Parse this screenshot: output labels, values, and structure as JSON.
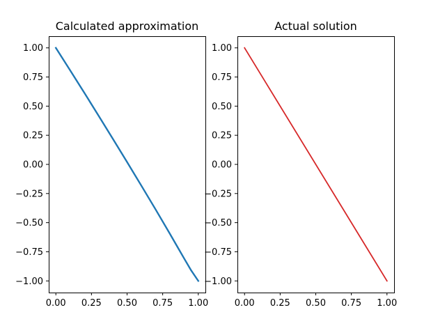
{
  "chart_data": [
    {
      "type": "line",
      "title": "Calculated approximation",
      "xlabel": "",
      "ylabel": "",
      "xlim": [
        -0.05,
        1.05
      ],
      "ylim": [
        -1.1,
        1.1
      ],
      "xticks": [
        0.0,
        0.25,
        0.5,
        0.75,
        1.0
      ],
      "xtick_labels": [
        "0.00",
        "0.25",
        "0.50",
        "0.75",
        "1.00"
      ],
      "yticks": [
        1.0,
        0.75,
        0.5,
        0.25,
        0.0,
        -0.25,
        -0.5,
        -0.75,
        -1.0
      ],
      "ytick_labels": [
        "1.00",
        "0.75",
        "0.50",
        "0.25",
        "0.00",
        "−0.25",
        "−0.50",
        "−0.75",
        "−1.00"
      ],
      "grid": false,
      "series": [
        {
          "color": "#1f77b4",
          "x": [
            0.0,
            0.1,
            0.2,
            0.3,
            0.4,
            0.5,
            0.6,
            0.7,
            0.8,
            0.9,
            0.95,
            1.0
          ],
          "y": [
            1.0,
            0.808,
            0.614,
            0.418,
            0.22,
            0.02,
            -0.182,
            -0.386,
            -0.594,
            -0.806,
            -0.91,
            -1.0
          ]
        }
      ]
    },
    {
      "type": "line",
      "title": "Actual solution",
      "xlabel": "",
      "ylabel": "",
      "xlim": [
        -0.05,
        1.05
      ],
      "ylim": [
        -1.1,
        1.1
      ],
      "xticks": [
        0.0,
        0.25,
        0.5,
        0.75,
        1.0
      ],
      "xtick_labels": [
        "0.00",
        "0.25",
        "0.50",
        "0.75",
        "1.00"
      ],
      "yticks": [
        1.0,
        0.75,
        0.5,
        0.25,
        0.0,
        -0.25,
        -0.5,
        -0.75,
        -1.0
      ],
      "ytick_labels": [
        "1.00",
        "0.75",
        "0.50",
        "0.25",
        "0.00",
        "−0.25",
        "−0.50",
        "−0.75",
        "−1.00"
      ],
      "grid": false,
      "series": [
        {
          "color": "#d62728",
          "x": [
            0.0,
            1.0
          ],
          "y": [
            1.0,
            -1.0
          ]
        }
      ]
    }
  ]
}
